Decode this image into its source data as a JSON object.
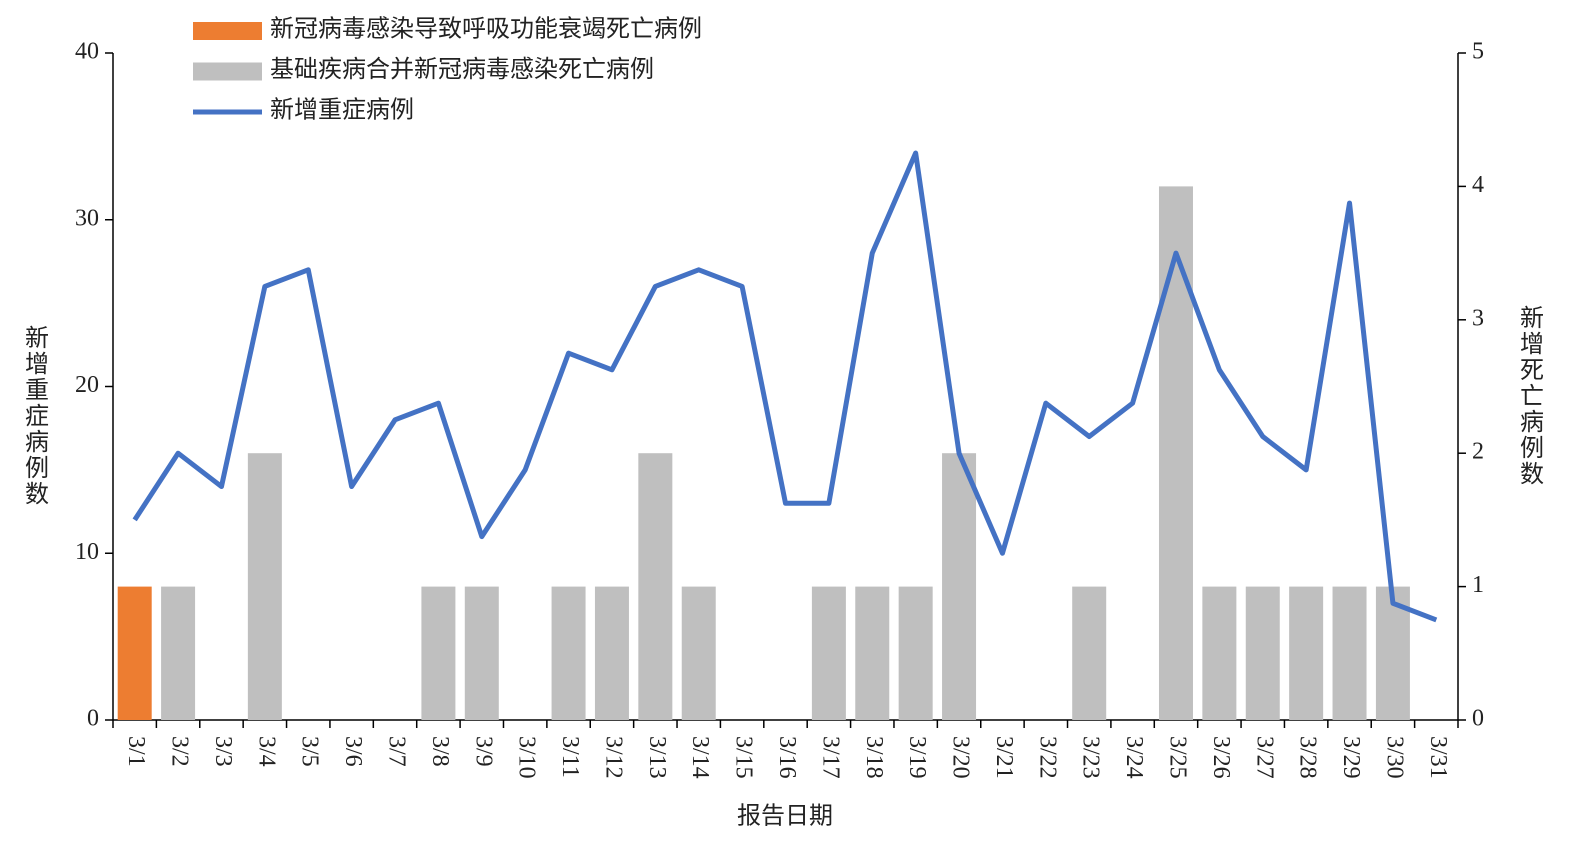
{
  "chart_data": {
    "type": "bar",
    "x_label": "报告日期",
    "y_label": "新增重症病例数",
    "y2_label": "新增死亡病例数",
    "categories": [
      "3/1",
      "3/2",
      "3/3",
      "3/4",
      "3/5",
      "3/6",
      "3/7",
      "3/8",
      "3/9",
      "3/10",
      "3/11",
      "3/12",
      "3/13",
      "3/14",
      "3/15",
      "3/16",
      "3/17",
      "3/18",
      "3/19",
      "3/20",
      "3/21",
      "3/22",
      "3/23",
      "3/24",
      "3/25",
      "3/26",
      "3/27",
      "3/28",
      "3/29",
      "3/30",
      "3/31"
    ],
    "ylim": [
      0,
      40
    ],
    "yticks": [
      0,
      10,
      20,
      30,
      40
    ],
    "y2lim": [
      0,
      5
    ],
    "y2ticks": [
      0,
      1,
      2,
      3,
      4,
      5
    ],
    "series": [
      {
        "name": "新冠病毒感染导致呼吸功能衰竭死亡病例",
        "type": "bar",
        "axis": "y2",
        "color": "#ed7d31",
        "values": [
          1,
          0,
          0,
          0,
          0,
          0,
          0,
          0,
          0,
          0,
          0,
          0,
          0,
          0,
          0,
          0,
          0,
          0,
          0,
          0,
          0,
          0,
          0,
          0,
          0,
          0,
          0,
          0,
          0,
          0,
          0
        ]
      },
      {
        "name": "基础疾病合并新冠病毒感染死亡病例",
        "type": "bar",
        "axis": "y2",
        "color": "#bfbfbf",
        "values": [
          0,
          1,
          0,
          2,
          0,
          0,
          0,
          1,
          1,
          0,
          1,
          1,
          2,
          1,
          0,
          0,
          1,
          1,
          1,
          2,
          0,
          0,
          1,
          0,
          4,
          1,
          1,
          1,
          1,
          1,
          0
        ]
      },
      {
        "name": "新增重症病例",
        "type": "line",
        "color": "#4472c4",
        "values": [
          12,
          16,
          14,
          26,
          27,
          14,
          18,
          19,
          11,
          15,
          22,
          21,
          26,
          27,
          26,
          13,
          13,
          28,
          34,
          16,
          10,
          19,
          17,
          19,
          28,
          21,
          17,
          15,
          31,
          7,
          6
        ]
      }
    ]
  }
}
